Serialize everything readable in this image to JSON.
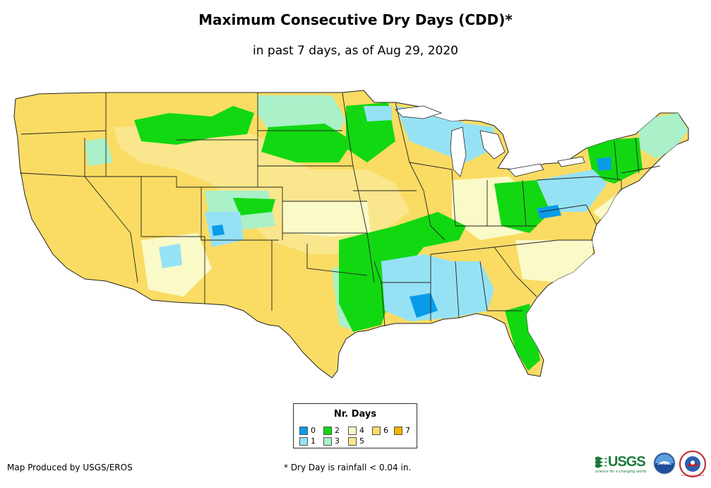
{
  "title": "Maximum Consecutive Dry Days (CDD)*",
  "subtitle": "in past 7 days, as of Aug 29, 2020",
  "legend": {
    "title": "Nr. Days",
    "items": [
      {
        "label": "0",
        "color": "#0a9be8"
      },
      {
        "label": "1",
        "color": "#96e2f5"
      },
      {
        "label": "2",
        "color": "#12d812"
      },
      {
        "label": "3",
        "color": "#aaf0c8"
      },
      {
        "label": "4",
        "color": "#fafac8"
      },
      {
        "label": "5",
        "color": "#fae68c"
      },
      {
        "label": "6",
        "color": "#fadc64"
      },
      {
        "label": "7",
        "color": "#f0b400"
      }
    ]
  },
  "footer": {
    "credit": "Map Produced by USGS/EROS",
    "note": "* Dry Day is rainfall < 0.04 in."
  },
  "logos": {
    "usgs": "USGS",
    "usgs_tagline": "science for a changing world",
    "noaa": "noaa",
    "nws": "NATIONAL WEATHER SERVICE"
  }
}
